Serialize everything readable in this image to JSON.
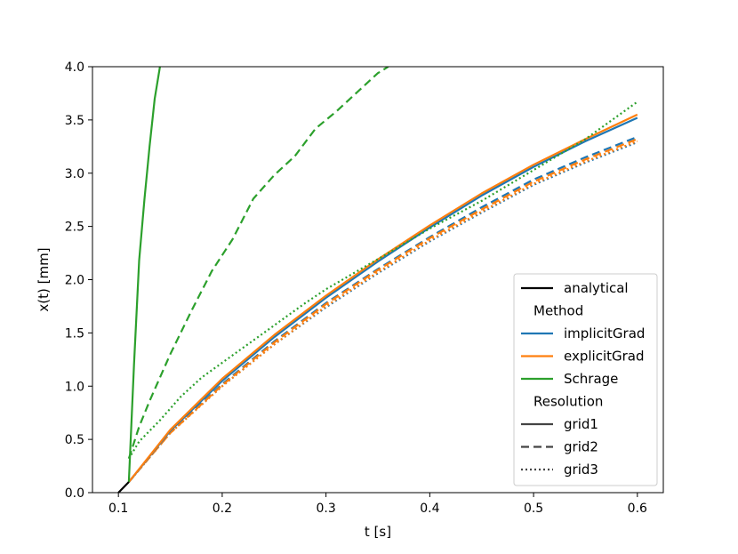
{
  "chart_data": {
    "type": "line",
    "xlabel": "t [s]",
    "ylabel": "x(t) [mm]",
    "xlim": [
      0.075,
      0.625
    ],
    "ylim": [
      0.0,
      4.0
    ],
    "xticks": [
      0.1,
      0.2,
      0.3,
      0.4,
      0.5,
      0.6
    ],
    "yticks": [
      0.0,
      0.5,
      1.0,
      1.5,
      2.0,
      2.5,
      3.0,
      3.5,
      4.0
    ],
    "grid": false,
    "legend_position": "lower-right",
    "colors": {
      "analytical": "#000000",
      "implicitGrad": "#1f77b4",
      "explicitGrad": "#ff7f0e",
      "Schrage": "#2ca02c"
    },
    "legend": {
      "entries": [
        {
          "label": "analytical",
          "color": "#000000",
          "dash": "solid"
        },
        {
          "header": "Method"
        },
        {
          "label": "implicitGrad",
          "color": "#1f77b4",
          "dash": "solid"
        },
        {
          "label": "explicitGrad",
          "color": "#ff7f0e",
          "dash": "solid"
        },
        {
          "label": "Schrage",
          "color": "#2ca02c",
          "dash": "solid"
        },
        {
          "header": "Resolution"
        },
        {
          "label": "grid1",
          "color": "#444444",
          "dash": "solid"
        },
        {
          "label": "grid2",
          "color": "#444444",
          "dash": "dashed"
        },
        {
          "label": "grid3",
          "color": "#444444",
          "dash": "dotted"
        }
      ]
    },
    "series": [
      {
        "method": "implicitGrad",
        "resolution": "grid3",
        "color": "#1f77b4",
        "dash": "dotted",
        "x": [
          0.11,
          0.15,
          0.2,
          0.25,
          0.3,
          0.35,
          0.4,
          0.45,
          0.5,
          0.55,
          0.6
        ],
        "y": [
          0.1,
          0.56,
          1.0,
          1.39,
          1.74,
          2.06,
          2.36,
          2.63,
          2.89,
          3.1,
          3.29
        ]
      },
      {
        "method": "explicitGrad",
        "resolution": "grid3",
        "color": "#ff7f0e",
        "dash": "dotted",
        "x": [
          0.11,
          0.15,
          0.2,
          0.25,
          0.3,
          0.35,
          0.4,
          0.45,
          0.5,
          0.55,
          0.6
        ],
        "y": [
          0.1,
          0.56,
          1.0,
          1.39,
          1.75,
          2.07,
          2.37,
          2.64,
          2.9,
          3.11,
          3.3
        ]
      },
      {
        "method": "implicitGrad",
        "resolution": "grid2",
        "color": "#1f77b4",
        "dash": "dashed",
        "x": [
          0.11,
          0.15,
          0.2,
          0.25,
          0.3,
          0.35,
          0.4,
          0.45,
          0.5,
          0.55,
          0.6
        ],
        "y": [
          0.1,
          0.57,
          1.02,
          1.42,
          1.78,
          2.1,
          2.4,
          2.68,
          2.94,
          3.15,
          3.34
        ]
      },
      {
        "method": "explicitGrad",
        "resolution": "grid2",
        "color": "#ff7f0e",
        "dash": "dashed",
        "x": [
          0.11,
          0.15,
          0.2,
          0.25,
          0.3,
          0.35,
          0.4,
          0.45,
          0.5,
          0.55,
          0.6
        ],
        "y": [
          0.1,
          0.56,
          1.01,
          1.41,
          1.77,
          2.09,
          2.39,
          2.66,
          2.92,
          3.13,
          3.32
        ]
      },
      {
        "method": "implicitGrad",
        "resolution": "grid1",
        "color": "#1f77b4",
        "dash": "solid",
        "x": [
          0.11,
          0.15,
          0.2,
          0.25,
          0.3,
          0.35,
          0.4,
          0.45,
          0.5,
          0.55,
          0.6
        ],
        "y": [
          0.1,
          0.58,
          1.05,
          1.46,
          1.83,
          2.17,
          2.49,
          2.79,
          3.06,
          3.3,
          3.52
        ]
      },
      {
        "method": "explicitGrad",
        "resolution": "grid1",
        "color": "#ff7f0e",
        "dash": "solid",
        "x": [
          0.11,
          0.15,
          0.2,
          0.25,
          0.3,
          0.35,
          0.4,
          0.45,
          0.5,
          0.55,
          0.6
        ],
        "y": [
          0.1,
          0.59,
          1.07,
          1.48,
          1.85,
          2.19,
          2.51,
          2.81,
          3.08,
          3.32,
          3.55
        ]
      },
      {
        "method": "Schrage",
        "resolution": "grid3",
        "color": "#2ca02c",
        "dash": "dotted",
        "x": [
          0.11,
          0.12,
          0.14,
          0.16,
          0.18,
          0.2,
          0.22,
          0.24,
          0.26,
          0.28,
          0.3,
          0.33,
          0.36,
          0.4,
          0.45,
          0.5,
          0.55,
          0.6
        ],
        "y": [
          0.32,
          0.48,
          0.68,
          0.9,
          1.08,
          1.22,
          1.36,
          1.5,
          1.64,
          1.78,
          1.91,
          2.08,
          2.25,
          2.48,
          2.74,
          3.03,
          3.32,
          3.67
        ]
      },
      {
        "method": "Schrage",
        "resolution": "grid2",
        "color": "#2ca02c",
        "dash": "dashed",
        "x": [
          0.11,
          0.12,
          0.13,
          0.15,
          0.17,
          0.19,
          0.21,
          0.23,
          0.25,
          0.27,
          0.29,
          0.31,
          0.33,
          0.35,
          0.36
        ],
        "y": [
          0.32,
          0.62,
          0.86,
          1.3,
          1.7,
          2.08,
          2.38,
          2.76,
          2.98,
          3.16,
          3.42,
          3.58,
          3.76,
          3.94,
          4.0
        ]
      },
      {
        "method": "Schrage",
        "resolution": "grid1",
        "color": "#2ca02c",
        "dash": "solid",
        "x": [
          0.11,
          0.115,
          0.12,
          0.125,
          0.13,
          0.135,
          0.14
        ],
        "y": [
          0.1,
          1.2,
          2.18,
          2.75,
          3.25,
          3.7,
          4.0
        ]
      },
      {
        "method": "analytical",
        "resolution": "",
        "color": "#000000",
        "dash": "solid",
        "x": [
          0.1,
          0.11
        ],
        "y": [
          0.0,
          0.1
        ]
      }
    ]
  }
}
